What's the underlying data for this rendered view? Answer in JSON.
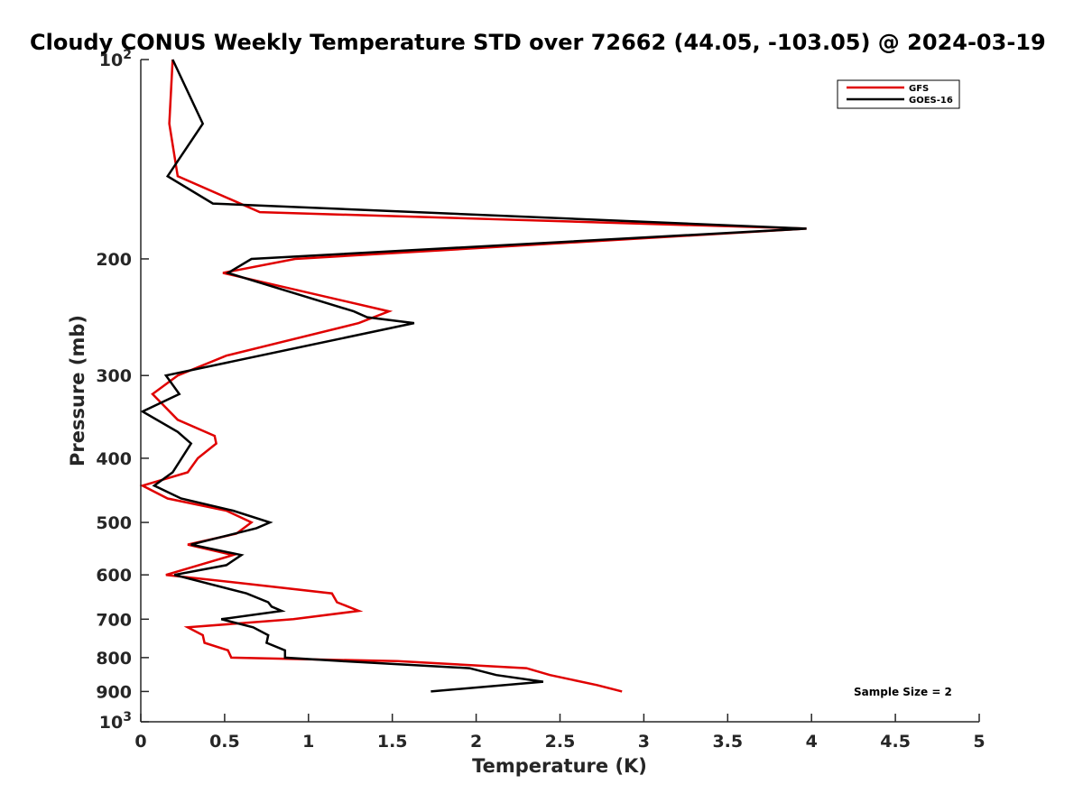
{
  "chart_data": {
    "type": "line",
    "title": "Cloudy CONUS Weekly Temperature STD over 72662 (44.05, -103.05) @ 2024-03-19",
    "xlabel": "Temperature (K)",
    "ylabel": "Pressure (mb)",
    "xlim": [
      0,
      5
    ],
    "ylim": [
      100,
      1000
    ],
    "y_scale": "log",
    "y_reversed": true,
    "grid": false,
    "legend_position": "top-right",
    "x_ticks": [
      0,
      0.5,
      1,
      1.5,
      2,
      2.5,
      3,
      3.5,
      4,
      4.5,
      5
    ],
    "x_tick_labels": [
      "0",
      "0.5",
      "1",
      "1.5",
      "2",
      "2.5",
      "3",
      "3.5",
      "4",
      "4.5",
      "5"
    ],
    "y_ticks": [
      {
        "value": 100,
        "label": "10",
        "sup": "2"
      },
      {
        "value": 200,
        "label": "200",
        "sup": ""
      },
      {
        "value": 300,
        "label": "300",
        "sup": ""
      },
      {
        "value": 400,
        "label": "400",
        "sup": ""
      },
      {
        "value": 500,
        "label": "500",
        "sup": ""
      },
      {
        "value": 600,
        "label": "600",
        "sup": ""
      },
      {
        "value": 700,
        "label": "700",
        "sup": ""
      },
      {
        "value": 800,
        "label": "800",
        "sup": ""
      },
      {
        "value": 900,
        "label": "900",
        "sup": ""
      },
      {
        "value": 1000,
        "label": "10",
        "sup": "3"
      }
    ],
    "annotation": "Sample Size = 2",
    "series": [
      {
        "name": "GFS",
        "color": "#e00000",
        "points": [
          [
            0.19,
            100
          ],
          [
            0.17,
            125
          ],
          [
            0.22,
            150
          ],
          [
            0.71,
            170
          ],
          [
            3.97,
            180
          ],
          [
            0.92,
            200
          ],
          [
            0.49,
            210
          ],
          [
            1.48,
            240
          ],
          [
            1.3,
            250
          ],
          [
            0.51,
            280
          ],
          [
            0.22,
            300
          ],
          [
            0.07,
            320
          ],
          [
            0.22,
            350
          ],
          [
            0.44,
            370
          ],
          [
            0.45,
            380
          ],
          [
            0.34,
            400
          ],
          [
            0.28,
            420
          ],
          [
            0.01,
            440
          ],
          [
            0.16,
            460
          ],
          [
            0.51,
            480
          ],
          [
            0.66,
            500
          ],
          [
            0.57,
            520
          ],
          [
            0.28,
            540
          ],
          [
            0.55,
            560
          ],
          [
            0.15,
            600
          ],
          [
            0.66,
            620
          ],
          [
            1.14,
            640
          ],
          [
            1.17,
            660
          ],
          [
            1.3,
            680
          ],
          [
            0.91,
            700
          ],
          [
            0.28,
            720
          ],
          [
            0.37,
            740
          ],
          [
            0.38,
            760
          ],
          [
            0.52,
            780
          ],
          [
            0.54,
            800
          ],
          [
            1.53,
            810
          ],
          [
            2.3,
            830
          ],
          [
            2.44,
            850
          ],
          [
            2.72,
            880
          ],
          [
            2.87,
            900
          ]
        ]
      },
      {
        "name": "GOES-16",
        "color": "#000000",
        "points": [
          [
            0.19,
            100
          ],
          [
            0.37,
            125
          ],
          [
            0.16,
            150
          ],
          [
            0.43,
            165
          ],
          [
            3.97,
            180
          ],
          [
            0.66,
            200
          ],
          [
            0.52,
            210
          ],
          [
            1.27,
            240
          ],
          [
            1.35,
            245
          ],
          [
            1.63,
            250
          ],
          [
            0.15,
            300
          ],
          [
            0.23,
            320
          ],
          [
            0.01,
            340
          ],
          [
            0.22,
            365
          ],
          [
            0.3,
            380
          ],
          [
            0.19,
            420
          ],
          [
            0.08,
            440
          ],
          [
            0.24,
            460
          ],
          [
            0.55,
            480
          ],
          [
            0.77,
            500
          ],
          [
            0.69,
            510
          ],
          [
            0.3,
            540
          ],
          [
            0.6,
            560
          ],
          [
            0.51,
            580
          ],
          [
            0.2,
            600
          ],
          [
            0.63,
            640
          ],
          [
            0.76,
            660
          ],
          [
            0.78,
            670
          ],
          [
            0.84,
            680
          ],
          [
            0.48,
            700
          ],
          [
            0.67,
            720
          ],
          [
            0.76,
            740
          ],
          [
            0.75,
            760
          ],
          [
            0.86,
            780
          ],
          [
            0.86,
            800
          ],
          [
            1.2,
            810
          ],
          [
            1.96,
            830
          ],
          [
            2.12,
            850
          ],
          [
            2.4,
            870
          ],
          [
            1.73,
            900
          ]
        ]
      }
    ]
  }
}
